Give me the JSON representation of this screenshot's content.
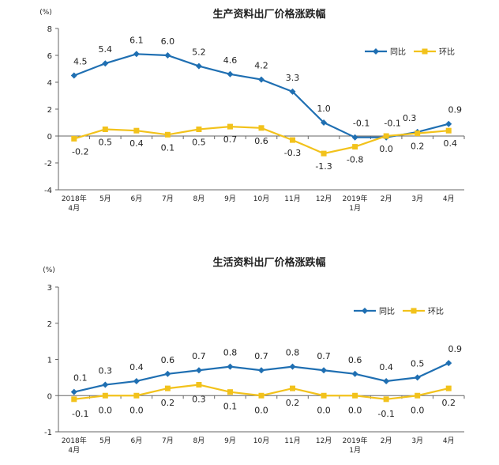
{
  "chart_data": [
    {
      "type": "line",
      "title": "生产资料出厂价格涨跌幅",
      "unit": "(%)",
      "ylim": [
        -4,
        8
      ],
      "yticks": [
        -4,
        -2,
        0,
        2,
        4,
        6,
        8
      ],
      "categories": [
        [
          "2018年",
          "4月"
        ],
        [
          "5月"
        ],
        [
          "6月"
        ],
        [
          "7月"
        ],
        [
          "8月"
        ],
        [
          "9月"
        ],
        [
          "10月"
        ],
        [
          "11月"
        ],
        [
          "12月"
        ],
        [
          "2019年",
          "1月"
        ],
        [
          "2月"
        ],
        [
          "3月"
        ],
        [
          "4月"
        ]
      ],
      "series": [
        {
          "name": "同比",
          "color": "#1f6fb2",
          "marker": "diamond",
          "values": [
            4.5,
            5.4,
            6.1,
            6.0,
            5.2,
            4.6,
            4.2,
            3.3,
            1.0,
            -0.1,
            -0.1,
            0.3,
            0.9
          ],
          "labels": [
            "4.5",
            "5.4",
            "6.1",
            "6.0",
            "5.2",
            "4.6",
            "4.2",
            "3.3",
            "1.0",
            "-0.1",
            "-0.1",
            "0.3",
            "0.9"
          ]
        },
        {
          "name": "环比",
          "color": "#f2c21b",
          "marker": "square",
          "values": [
            -0.2,
            0.5,
            0.4,
            0.1,
            0.5,
            0.7,
            0.6,
            -0.3,
            -1.3,
            -0.8,
            0.0,
            0.2,
            0.4
          ],
          "labels": [
            "-0.2",
            "0.5",
            "0.4",
            "0.1",
            "0.5",
            "0.7",
            "0.6",
            "-0.3",
            "-1.3",
            "-0.8",
            "0.0",
            "0.2",
            "0.4"
          ]
        }
      ],
      "legend": "top-right"
    },
    {
      "type": "line",
      "title": "生活资料出厂价格涨跌幅",
      "unit": "(%)",
      "ylim": [
        -1,
        3
      ],
      "yticks": [
        -1,
        0,
        1,
        2,
        3
      ],
      "categories": [
        [
          "2018年",
          "4月"
        ],
        [
          "5月"
        ],
        [
          "6月"
        ],
        [
          "7月"
        ],
        [
          "8月"
        ],
        [
          "9月"
        ],
        [
          "10月"
        ],
        [
          "11月"
        ],
        [
          "12月"
        ],
        [
          "2019年",
          "1月"
        ],
        [
          "2月"
        ],
        [
          "3月"
        ],
        [
          "4月"
        ]
      ],
      "series": [
        {
          "name": "同比",
          "color": "#1f6fb2",
          "marker": "diamond",
          "values": [
            0.1,
            0.3,
            0.4,
            0.6,
            0.7,
            0.8,
            0.7,
            0.8,
            0.7,
            0.6,
            0.4,
            0.5,
            0.9
          ],
          "labels": [
            "0.1",
            "0.3",
            "0.4",
            "0.6",
            "0.7",
            "0.8",
            "0.7",
            "0.8",
            "0.7",
            "0.6",
            "0.4",
            "0.5",
            "0.9"
          ]
        },
        {
          "name": "环比",
          "color": "#f2c21b",
          "marker": "square",
          "values": [
            -0.1,
            0.0,
            0.0,
            0.2,
            0.3,
            0.1,
            0.0,
            0.2,
            0.0,
            0.0,
            -0.1,
            0.0,
            0.2
          ],
          "labels": [
            "-0.1",
            "0.0",
            "0.0",
            "0.2",
            "0.3",
            "0.1",
            "0.0",
            "0.2",
            "0.0",
            "0.0",
            "-0.1",
            "0.0",
            "0.2"
          ]
        }
      ],
      "legend": "top-right"
    }
  ]
}
